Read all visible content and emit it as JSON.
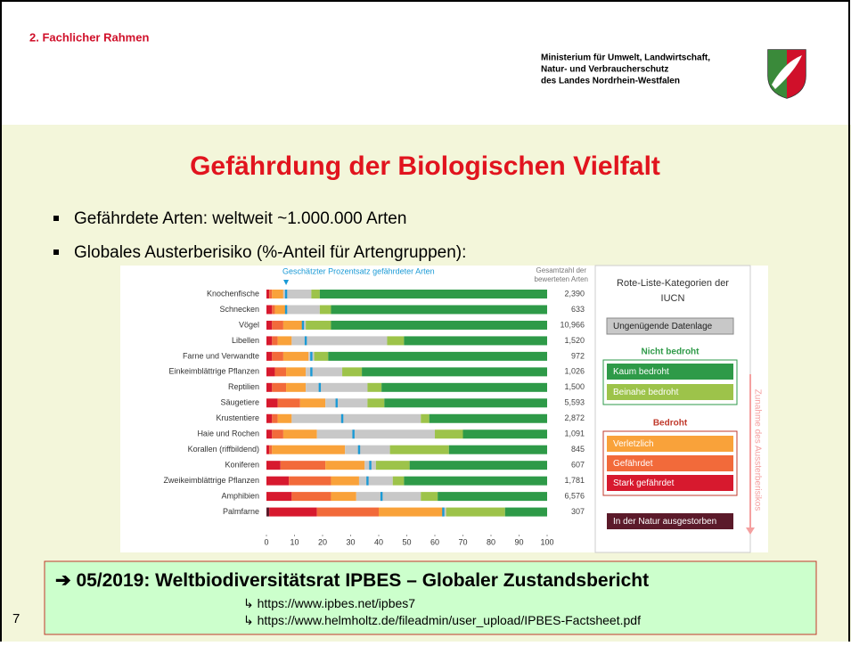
{
  "header": {
    "section": "2. Fachlicher Rahmen",
    "ministry": [
      "Ministerium für Umwelt, Landwirtschaft,",
      "Natur- und Verbraucherschutz",
      "des Landes Nordrhein-Westfalen"
    ]
  },
  "title": "Gefährdung der Biologischen Vielfalt",
  "bullets": [
    "Gefährdete Arten:  weltweit ~1.000.000 Arten",
    "Globales Austerberisiko (%-Anteil für Artengruppen):"
  ],
  "chart_data": {
    "type": "stacked-barh",
    "categories": [
      "Knochenfische",
      "Schnecken",
      "Vögel",
      "Libellen",
      "Farne und Verwandte",
      "Einkeimblättrige Pflanzen",
      "Reptilien",
      "Säugetiere",
      "Krustentiere",
      "Haie und Rochen",
      "Korallen (riffbildend)",
      "Koniferen",
      "Zweikeimblättrige Pflanzen",
      "Amphibien",
      "Palmfarne"
    ],
    "series": [
      {
        "name": "In der Natur ausgestorben",
        "color": "#5b1a2a",
        "values": [
          0,
          0,
          0,
          0,
          0,
          0,
          0,
          0,
          0,
          0,
          0,
          0,
          0,
          0,
          1
        ]
      },
      {
        "name": "Stark gefährdet",
        "color": "#d7192e",
        "values": [
          1,
          2,
          2,
          2,
          2,
          3,
          2,
          4,
          2,
          2,
          1,
          5,
          8,
          9,
          17
        ]
      },
      {
        "name": "Gefährdet",
        "color": "#f26a3a",
        "values": [
          1,
          1,
          4,
          2,
          4,
          4,
          5,
          8,
          2,
          4,
          1,
          16,
          15,
          14,
          22
        ]
      },
      {
        "name": "Verletzlich",
        "color": "#f9a23a",
        "values": [
          4,
          4,
          7,
          5,
          9,
          7,
          7,
          9,
          5,
          12,
          26,
          14,
          10,
          9,
          23
        ]
      },
      {
        "name": "Ungenügende Datenlage",
        "color": "#c8c8c8",
        "values": [
          10,
          12,
          1,
          34,
          2,
          13,
          22,
          15,
          46,
          42,
          16,
          4,
          12,
          23,
          1
        ]
      },
      {
        "name": "Beinahe bedroht",
        "color": "#9dc34a",
        "values": [
          3,
          4,
          9,
          6,
          5,
          7,
          5,
          6,
          3,
          10,
          21,
          12,
          4,
          6,
          21
        ]
      },
      {
        "name": "Kaum bedroht",
        "color": "#2e9a48",
        "values": [
          81,
          77,
          77,
          51,
          78,
          66,
          59,
          58,
          42,
          30,
          35,
          49,
          51,
          39,
          15
        ]
      }
    ],
    "marker": {
      "name": "Geschätzter Prozentsatz gefährdeter Arten",
      "color": "#1a9ad6",
      "values": [
        7,
        7,
        13,
        14,
        16,
        16,
        19,
        25,
        27,
        31,
        33,
        37,
        36,
        41,
        63
      ]
    },
    "totals": {
      "name": [
        "Gesamtzahl der",
        "bewerteten Arten"
      ],
      "values": [
        2390,
        633,
        10966,
        1520,
        972,
        1026,
        1500,
        5593,
        2872,
        1091,
        845,
        607,
        1781,
        6576,
        307
      ],
      "value_labels": [
        "2,390",
        "633",
        "10,966",
        "1,520",
        "972",
        "1,026",
        "1,500",
        "5,593",
        "2,872",
        "1,091",
        "845",
        "607",
        "1,781",
        "6,576",
        "307"
      ]
    },
    "xlim": [
      0,
      100
    ],
    "xticks": [
      0,
      10,
      20,
      30,
      40,
      50,
      60,
      70,
      80,
      90,
      100
    ],
    "legend": {
      "title": [
        "Rote-Liste-Kategorien der",
        "IUCN"
      ],
      "groups": [
        "Nicht bedroht",
        "Bedroht"
      ],
      "arrow": "Zunahme des Aussterberisikos"
    }
  },
  "footer": {
    "headline": "05/2019: Weltbiodiversitätsrat IPBES – Globaler Zustandsbericht",
    "links": [
      "https://www.ipbes.net/ipbes7",
      "https://www.helmholtz.de/fileadmin/user_upload/IPBES-Factsheet.pdf"
    ]
  },
  "page_number": "7"
}
